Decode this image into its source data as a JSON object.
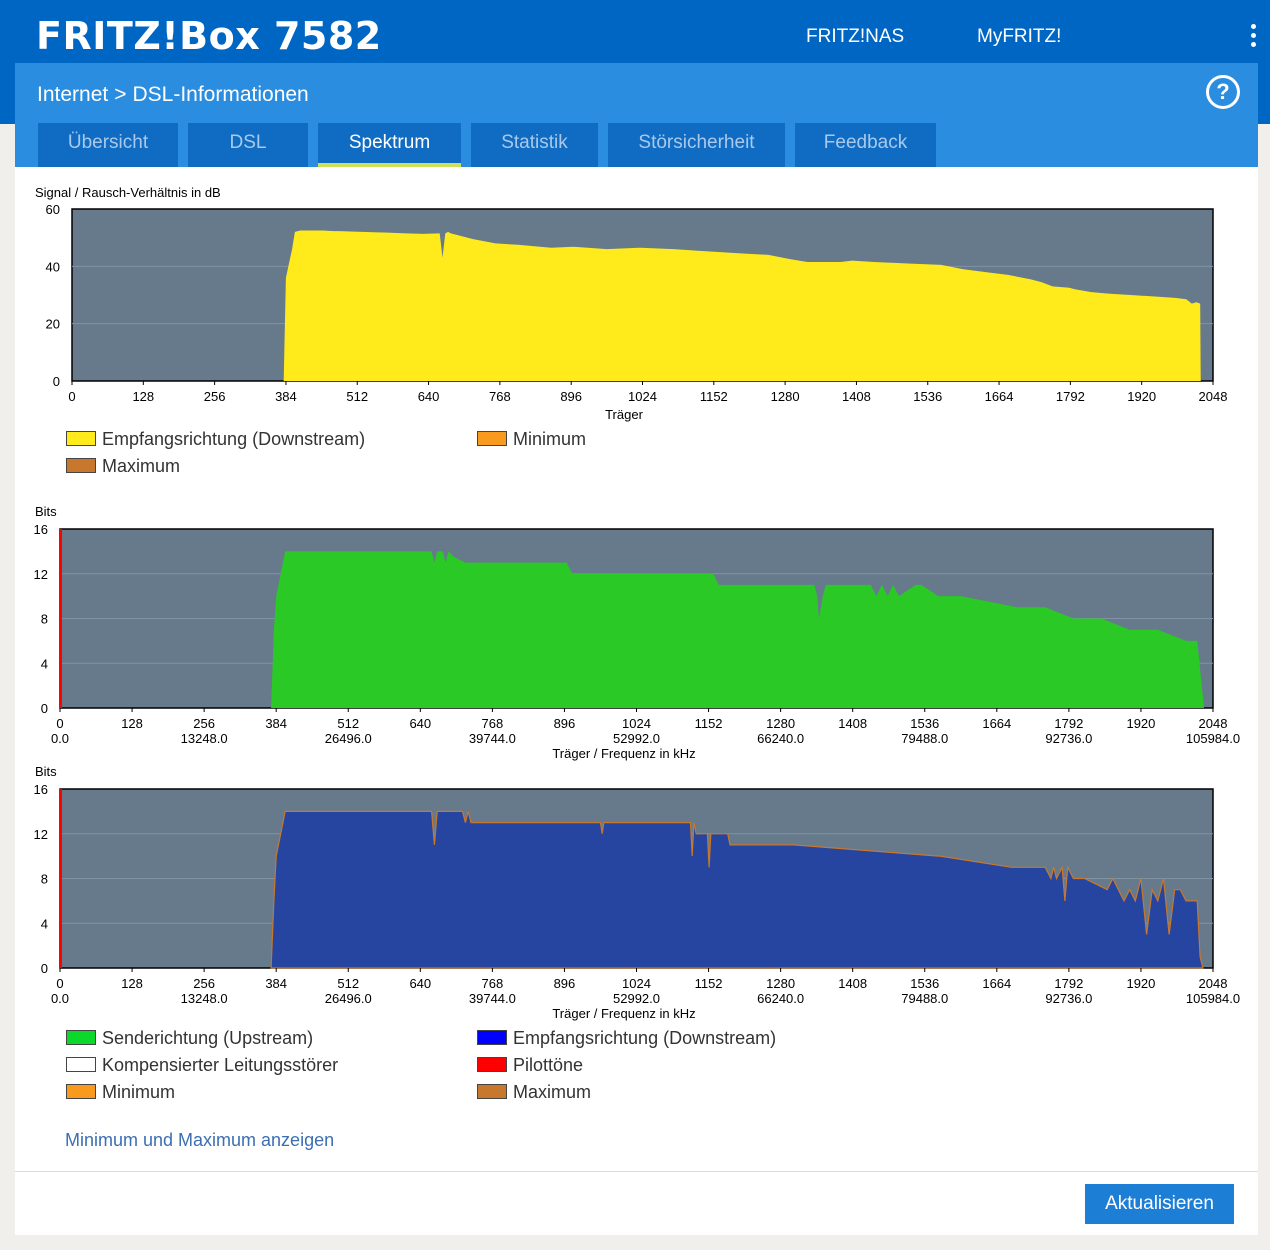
{
  "header": {
    "brand": "FRITZ!Box 7582",
    "nav": [
      "FRITZ!NAS",
      "MyFRITZ!"
    ]
  },
  "breadcrumb": {
    "parent": "Internet",
    "separator": ">",
    "current": "DSL-Informationen",
    "help": "?"
  },
  "tabs": [
    {
      "label": "Übersicht",
      "active": false
    },
    {
      "label": "DSL",
      "active": false
    },
    {
      "label": "Spektrum",
      "active": true
    },
    {
      "label": "Statistik",
      "active": false
    },
    {
      "label": "Störsicherheit",
      "active": false
    },
    {
      "label": "Feedback",
      "active": false
    }
  ],
  "colors": {
    "header": "#0066c4",
    "panel": "#2b8de0",
    "plot_bg": "#667a8c",
    "downstream_snr": "#ffeb1c",
    "upstream": "#2ac926",
    "downstream": "#2545a0",
    "minimum": "#f79a1d",
    "maximum": "#c8782c",
    "pilot": "#ff0000",
    "button": "#1d7ed6"
  },
  "chart_data": [
    {
      "type": "area",
      "ylabel": "Signal / Rausch-Verhältnis in dB",
      "xlabel": "Träger",
      "ylim": [
        0,
        60
      ],
      "xlim": [
        0,
        2048
      ],
      "yticks": [
        "0",
        "20",
        "40",
        "60"
      ],
      "xticks": [
        "0",
        "128",
        "256",
        "384",
        "512",
        "640",
        "768",
        "896",
        "1024",
        "1152",
        "1280",
        "1408",
        "1536",
        "1664",
        "1792",
        "1920",
        "2048"
      ],
      "grid": true,
      "series": [
        {
          "name": "Empfangsrichtung (Downstream)",
          "color": "#ffeb1c",
          "x": [
            380,
            384,
            395,
            400,
            410,
            450,
            470,
            480,
            520,
            560,
            600,
            630,
            660,
            665,
            670,
            675,
            680,
            700,
            720,
            760,
            800,
            860,
            900,
            960,
            1020,
            1080,
            1120,
            1160,
            1200,
            1250,
            1290,
            1320,
            1380,
            1400,
            1440,
            1500,
            1560,
            1600,
            1640,
            1680,
            1720,
            1740,
            1760,
            1790,
            1800,
            1830,
            1860,
            1900,
            1940,
            1980,
            2000,
            2010,
            2018,
            2025,
            2026
          ],
          "y": [
            0,
            36,
            46,
            52,
            52.5,
            52.5,
            52.3,
            52.3,
            52,
            51.8,
            51.5,
            51.3,
            51.5,
            43,
            51.5,
            52,
            51.5,
            50.5,
            49.5,
            48,
            47.5,
            46.5,
            46.8,
            46,
            46.5,
            46,
            45.5,
            45,
            44.5,
            44,
            42.5,
            41.5,
            41.5,
            42,
            41.5,
            41,
            40.5,
            39,
            38,
            37,
            35.5,
            34.5,
            33,
            32.5,
            32,
            31,
            30.5,
            30,
            29.5,
            29,
            28.5,
            27,
            27.5,
            27,
            0
          ]
        }
      ],
      "legend": [
        {
          "label": "Empfangsrichtung (Downstream)",
          "color": "#ffeb1c"
        },
        {
          "label": "Minimum",
          "color": "#f79a1d"
        },
        {
          "label": "Maximum",
          "color": "#c8782c"
        }
      ]
    },
    {
      "type": "area",
      "ylabel": "Bits",
      "xlabel": "Träger / Frequenz in kHz",
      "ylim": [
        0,
        16
      ],
      "xlim": [
        0,
        2048
      ],
      "yticks": [
        "0",
        "4",
        "8",
        "12",
        "16"
      ],
      "xticks": [
        "0",
        "128",
        "256",
        "384",
        "512",
        "640",
        "768",
        "896",
        "1024",
        "1152",
        "1280",
        "1408",
        "1536",
        "1664",
        "1792",
        "1920",
        "2048"
      ],
      "xticks_freq": [
        "0.0",
        "13248.0",
        "26496.0",
        "39744.0",
        "52992.0",
        "66240.0",
        "79488.0",
        "92736.0",
        "105984.0"
      ],
      "grid": true,
      "series": [
        {
          "name": "Senderichtung (Upstream)",
          "color": "#2ac926",
          "x": [
            375,
            380,
            384,
            392,
            400,
            660,
            665,
            670,
            680,
            685,
            690,
            700,
            720,
            900,
            910,
            1160,
            1170,
            1340,
            1345,
            1348,
            1355,
            1360,
            1380,
            1400,
            1440,
            1450,
            1460,
            1470,
            1480,
            1490,
            1520,
            1530,
            1560,
            1600,
            1700,
            1750,
            1800,
            1850,
            1900,
            1950,
            2000,
            2020,
            2030,
            2032
          ],
          "y": [
            0,
            7,
            10,
            12,
            14,
            14,
            13,
            14,
            14,
            13,
            14,
            13.5,
            13,
            13,
            12,
            12,
            11,
            11,
            10,
            8,
            10,
            11,
            11,
            11,
            11,
            10,
            11,
            10,
            11,
            10,
            11,
            11,
            10,
            10,
            9,
            9,
            8,
            8,
            7,
            7,
            6,
            6,
            1,
            0
          ]
        },
        {
          "name": "Pilottöne",
          "color": "#ff0000",
          "x": [
            0,
            0
          ],
          "y": [
            0,
            16
          ]
        }
      ]
    },
    {
      "type": "area",
      "ylabel": "Bits",
      "xlabel": "Träger / Frequenz in kHz",
      "ylim": [
        0,
        16
      ],
      "xlim": [
        0,
        2048
      ],
      "yticks": [
        "0",
        "4",
        "8",
        "12",
        "16"
      ],
      "xticks": [
        "0",
        "128",
        "256",
        "384",
        "512",
        "640",
        "768",
        "896",
        "1024",
        "1152",
        "1280",
        "1408",
        "1536",
        "1664",
        "1792",
        "1920",
        "2048"
      ],
      "xticks_freq": [
        "0.0",
        "13248.0",
        "26496.0",
        "39744.0",
        "52992.0",
        "66240.0",
        "79488.0",
        "92736.0",
        "105984.0"
      ],
      "grid": true,
      "series": [
        {
          "name": "Empfangsrichtung (Downstream)",
          "color": "#2545a0",
          "x": [
            375,
            380,
            384,
            392,
            400,
            660,
            665,
            670,
            715,
            720,
            725,
            730,
            960,
            963,
            966,
            1120,
            1123,
            1126,
            1130,
            1150,
            1153,
            1156,
            1160,
            1180,
            1183,
            1186,
            1190,
            1300,
            1303,
            1560,
            1563,
            1690,
            1693,
            1750,
            1760,
            1765,
            1770,
            1780,
            1785,
            1790,
            1800,
            1810,
            1820,
            1860,
            1870,
            1880,
            1890,
            1900,
            1910,
            1920,
            1930,
            1940,
            1950,
            1960,
            1970,
            1980,
            1990,
            2000,
            2010,
            2020,
            2025,
            2030
          ],
          "y": [
            0,
            6,
            10,
            12,
            14,
            14,
            11,
            14,
            14,
            13,
            14,
            13,
            13,
            12,
            13,
            13,
            10,
            13,
            12,
            12,
            9,
            12,
            12,
            12,
            12,
            12,
            11,
            11,
            11,
            10,
            10,
            9,
            9,
            9,
            8,
            9,
            8,
            9,
            6,
            9,
            8,
            8,
            8,
            7,
            8,
            7,
            6,
            7,
            6,
            8,
            3,
            7,
            6,
            8,
            3,
            7,
            7,
            6,
            6,
            6,
            1,
            0
          ]
        }
      ],
      "legend": [
        {
          "label": "Senderichtung (Upstream)",
          "color": "#0bd82a"
        },
        {
          "label": "Empfangsrichtung (Downstream)",
          "color": "#0000ff"
        },
        {
          "label": "Kompensierter Leitungsstörer",
          "color": "#ffffff"
        },
        {
          "label": "Pilottöne",
          "color": "#ff0000"
        },
        {
          "label": "Minimum",
          "color": "#f79a1d"
        },
        {
          "label": "Maximum",
          "color": "#c8782c"
        }
      ]
    }
  ],
  "link": "Minimum und Maximum anzeigen",
  "button": "Aktualisieren"
}
